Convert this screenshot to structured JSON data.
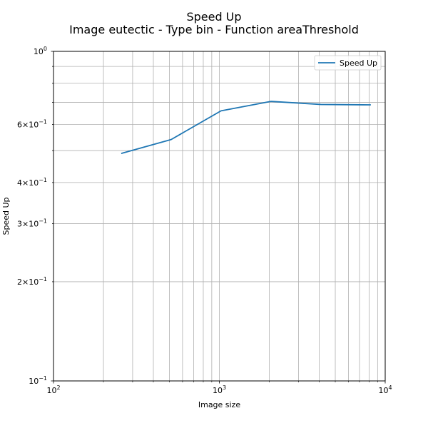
{
  "chart_data": {
    "type": "line",
    "title_lines": [
      "Speed Up",
      "Image eutectic - Type bin - Function areaThreshold"
    ],
    "xlabel": "Image size",
    "ylabel": "Speed Up",
    "x_scale": "log",
    "y_scale": "log",
    "xlim": [
      100,
      10000
    ],
    "ylim": [
      0.1,
      1.0
    ],
    "x_tick_labels": [
      {
        "value": 100,
        "base": "10",
        "exp": "2"
      },
      {
        "value": 1000,
        "base": "10",
        "exp": "3"
      },
      {
        "value": 10000,
        "base": "10",
        "exp": "4"
      }
    ],
    "y_tick_labels": [
      {
        "value": 0.1,
        "mant": "",
        "base": "10",
        "exp": "−1"
      },
      {
        "value": 0.2,
        "mant": "2×",
        "base": "10",
        "exp": "−1"
      },
      {
        "value": 0.3,
        "mant": "3×",
        "base": "10",
        "exp": "−1"
      },
      {
        "value": 0.4,
        "mant": "4×",
        "base": "10",
        "exp": "−1"
      },
      {
        "value": 0.6,
        "mant": "6×",
        "base": "10",
        "exp": "−1"
      },
      {
        "value": 1.0,
        "mant": "",
        "base": "10",
        "exp": "0"
      }
    ],
    "grid": true,
    "legend_position": "top-right",
    "series": [
      {
        "name": "Speed Up",
        "color": "#1f77b4",
        "x": [
          256,
          512,
          1024,
          2048,
          4096,
          8192
        ],
        "y": [
          0.49,
          0.54,
          0.66,
          0.705,
          0.69,
          0.688
        ]
      }
    ]
  }
}
